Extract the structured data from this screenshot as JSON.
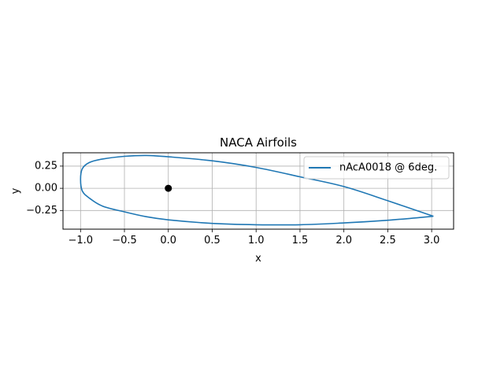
{
  "chart_data": {
    "type": "line",
    "title": "NACA Airfoils",
    "xlabel": "x",
    "ylabel": "y",
    "xlim": [
      -1.2,
      3.25
    ],
    "ylim": [
      -0.46,
      0.4
    ],
    "xticks": [
      -1.0,
      -0.5,
      0.0,
      0.5,
      1.0,
      1.5,
      2.0,
      2.5,
      3.0
    ],
    "xtick_labels": [
      "−1.0",
      "−0.5",
      "0.0",
      "0.5",
      "1.0",
      "1.5",
      "2.0",
      "2.5",
      "3.0"
    ],
    "yticks": [
      0.25,
      0.0,
      -0.25
    ],
    "ytick_labels": [
      "0.25",
      "0.00",
      "−0.25"
    ],
    "grid": true,
    "legend_placement": "top-right",
    "series": [
      {
        "name": "nAcA0018 @ 6deg.",
        "color": "#1f77b4",
        "x": [
          3.02,
          2.5,
          2.0,
          1.5,
          1.0,
          0.5,
          0.0,
          -0.25,
          -0.5,
          -0.75,
          -0.9,
          -0.98,
          -1.0,
          -0.98,
          -0.9,
          -0.75,
          -0.5,
          -0.25,
          0.0,
          0.5,
          1.0,
          1.5,
          2.0,
          2.5,
          3.02
        ],
        "y": [
          -0.315,
          -0.14,
          0.02,
          0.13,
          0.235,
          0.31,
          0.355,
          0.37,
          0.36,
          0.33,
          0.29,
          0.22,
          0.1,
          -0.03,
          -0.11,
          -0.2,
          -0.265,
          -0.32,
          -0.355,
          -0.395,
          -0.41,
          -0.41,
          -0.39,
          -0.36,
          -0.315
        ]
      },
      {
        "name": "",
        "type": "scatter",
        "color": "#000000",
        "x": [
          0.0
        ],
        "y": [
          0.0
        ]
      }
    ]
  }
}
